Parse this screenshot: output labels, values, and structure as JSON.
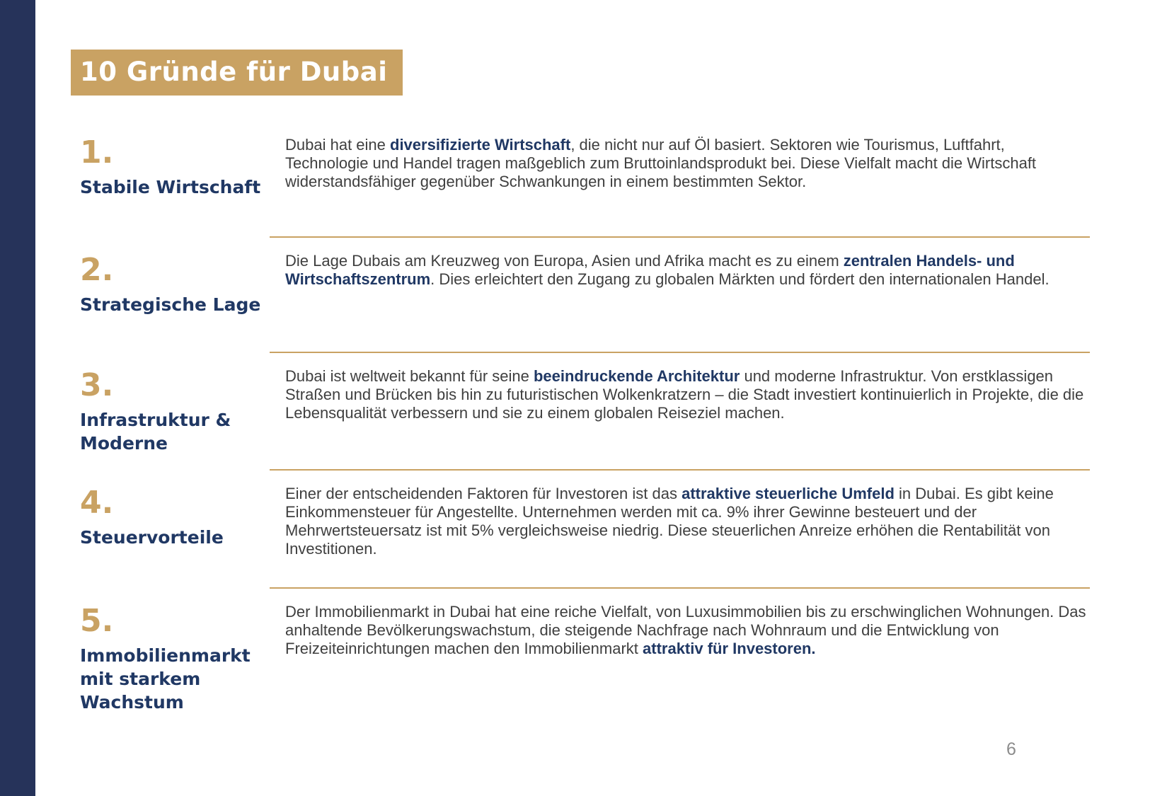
{
  "slide": {
    "title": "10 Gründe für Dubai",
    "page_number": "6"
  },
  "colors": {
    "gold_accent": "#C9A263",
    "navy_heading": "#203864",
    "sidebar_navy": "#26335A",
    "body_text": "#3F3F3F",
    "page_number_gray": "#8C8C8C"
  },
  "items": [
    {
      "number": "1.",
      "heading": "Stabile Wirtschaft",
      "segments": [
        {
          "text": "Dubai hat eine ",
          "bold": false
        },
        {
          "text": "diversifizierte Wirtschaft",
          "bold": true
        },
        {
          "text": ", die nicht nur auf Öl basiert. Sektoren wie Tourismus, Luftfahrt, Technologie und Handel tragen maßgeblich zum Bruttoinlandsprodukt bei. Diese Vielfalt macht die Wirtschaft widerstandsfähiger gegenüber Schwankungen in einem bestimmten Sektor.",
          "bold": false
        }
      ]
    },
    {
      "number": "2.",
      "heading": "Strategische Lage",
      "segments": [
        {
          "text": "Die Lage Dubais am Kreuzweg von Europa, Asien und Afrika macht es zu einem ",
          "bold": false
        },
        {
          "text": "zentralen Handels- und Wirtschaftszentrum",
          "bold": true
        },
        {
          "text": ". Dies erleichtert den Zugang zu globalen Märkten und fördert den internationalen Handel.",
          "bold": false
        }
      ]
    },
    {
      "number": "3.",
      "heading": "Infrastruktur & Moderne",
      "segments": [
        {
          "text": "Dubai ist weltweit bekannt für seine ",
          "bold": false
        },
        {
          "text": "beeindruckende Architektur",
          "bold": true
        },
        {
          "text": " und moderne Infrastruktur. Von erstklassigen Straßen und Brücken bis hin zu futuristischen Wolkenkratzern – die Stadt investiert kontinuierlich in Projekte, die die Lebensqualität verbessern und sie zu einem globalen Reiseziel machen.",
          "bold": false
        }
      ]
    },
    {
      "number": "4.",
      "heading": "Steuervorteile",
      "segments": [
        {
          "text": "Einer der entscheidenden Faktoren für Investoren ist das ",
          "bold": false
        },
        {
          "text": "attraktive steuerliche Umfeld",
          "bold": true
        },
        {
          "text": " in Dubai. Es gibt keine Einkommensteuer für Angestellte. Unternehmen werden mit ca. 9% ihrer Gewinne besteuert und der Mehrwertsteuersatz ist mit 5% vergleichsweise niedrig. Diese steuerlichen Anreize erhöhen die Rentabilität von Investitionen.",
          "bold": false
        }
      ]
    },
    {
      "number": "5.",
      "heading": "Immobilienmarkt mit starkem Wachstum",
      "segments": [
        {
          "text": "Der Immobilienmarkt in Dubai hat eine reiche Vielfalt, von Luxusimmobilien bis zu erschwinglichen Wohnungen. Das anhaltende Bevölkerungswachstum, die steigende Nachfrage nach Wohnraum und die Entwicklung von Freizeiteinrichtungen machen den Immobilienmarkt ",
          "bold": false
        },
        {
          "text": "attraktiv für Investoren.",
          "bold": true
        }
      ]
    }
  ]
}
